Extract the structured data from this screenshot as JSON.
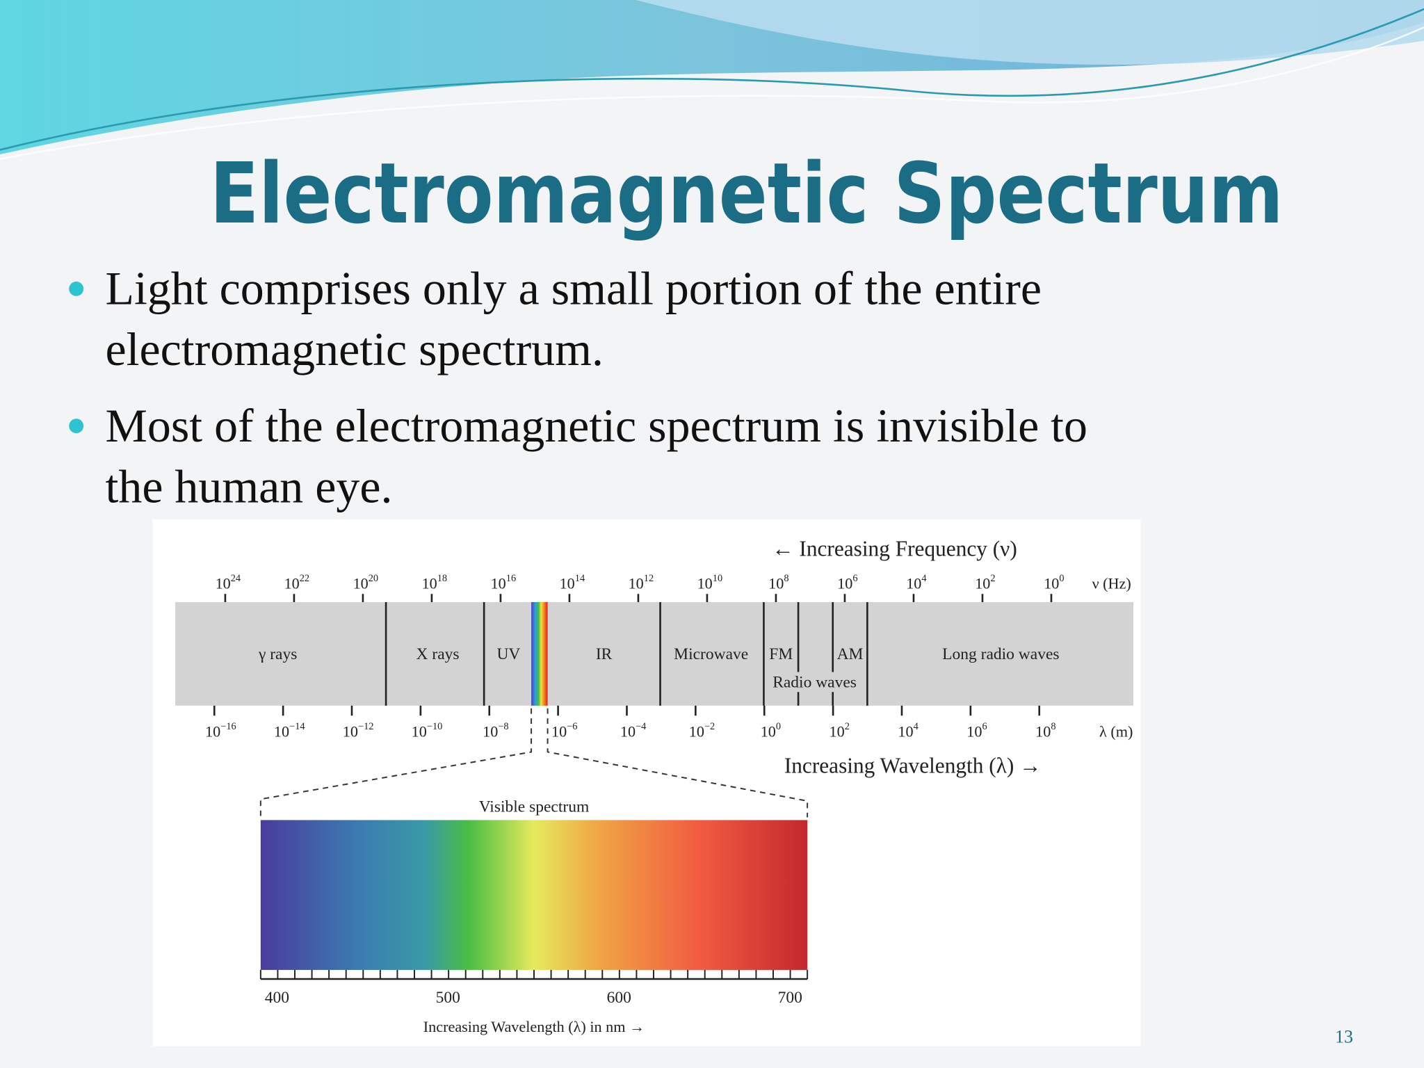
{
  "title": "Electromagnetic Spectrum",
  "bullets": [
    [
      "Light comprises only a small portion of the entire",
      "electromagnetic spectrum."
    ],
    [
      "Most of the electromagnetic spectrum is invisible to",
      "the human eye."
    ]
  ],
  "diagram": {
    "frequency_title": "← Increasing Frequency (ν)",
    "frequency_unit": "ν (Hz)",
    "frequency_ticks": [
      {
        "base": "10",
        "exponent": "24"
      },
      {
        "base": "10",
        "exponent": "22"
      },
      {
        "base": "10",
        "exponent": "20"
      },
      {
        "base": "10",
        "exponent": "18"
      },
      {
        "base": "10",
        "exponent": "16"
      },
      {
        "base": "10",
        "exponent": "14"
      },
      {
        "base": "10",
        "exponent": "12"
      },
      {
        "base": "10",
        "exponent": "10"
      },
      {
        "base": "10",
        "exponent": "8"
      },
      {
        "base": "10",
        "exponent": "6"
      },
      {
        "base": "10",
        "exponent": "4"
      },
      {
        "base": "10",
        "exponent": "2"
      },
      {
        "base": "10",
        "exponent": "0"
      }
    ],
    "wavelength_title": "Increasing Wavelength (λ) →",
    "wavelength_unit": "λ (m)",
    "wavelength_ticks": [
      {
        "base": "10",
        "exponent": "−16"
      },
      {
        "base": "10",
        "exponent": "−14"
      },
      {
        "base": "10",
        "exponent": "−12"
      },
      {
        "base": "10",
        "exponent": "−10"
      },
      {
        "base": "10",
        "exponent": "−8"
      },
      {
        "base": "10",
        "exponent": "−6"
      },
      {
        "base": "10",
        "exponent": "−4"
      },
      {
        "base": "10",
        "exponent": "−2"
      },
      {
        "base": "10",
        "exponent": "0"
      },
      {
        "base": "10",
        "exponent": "2"
      },
      {
        "base": "10",
        "exponent": "4"
      },
      {
        "base": "10",
        "exponent": "6"
      },
      {
        "base": "10",
        "exponent": "8"
      }
    ],
    "bands": [
      "γ rays",
      "X rays",
      "UV",
      "IR",
      "Microwave",
      "FM",
      "AM",
      "Radio waves",
      "Long radio waves"
    ],
    "visible": {
      "title": "Visible spectrum",
      "ticks": [
        "400",
        "500",
        "600",
        "700"
      ],
      "axis_title": "Increasing Wavelength (λ) in nm →"
    }
  },
  "page_number": "13"
}
